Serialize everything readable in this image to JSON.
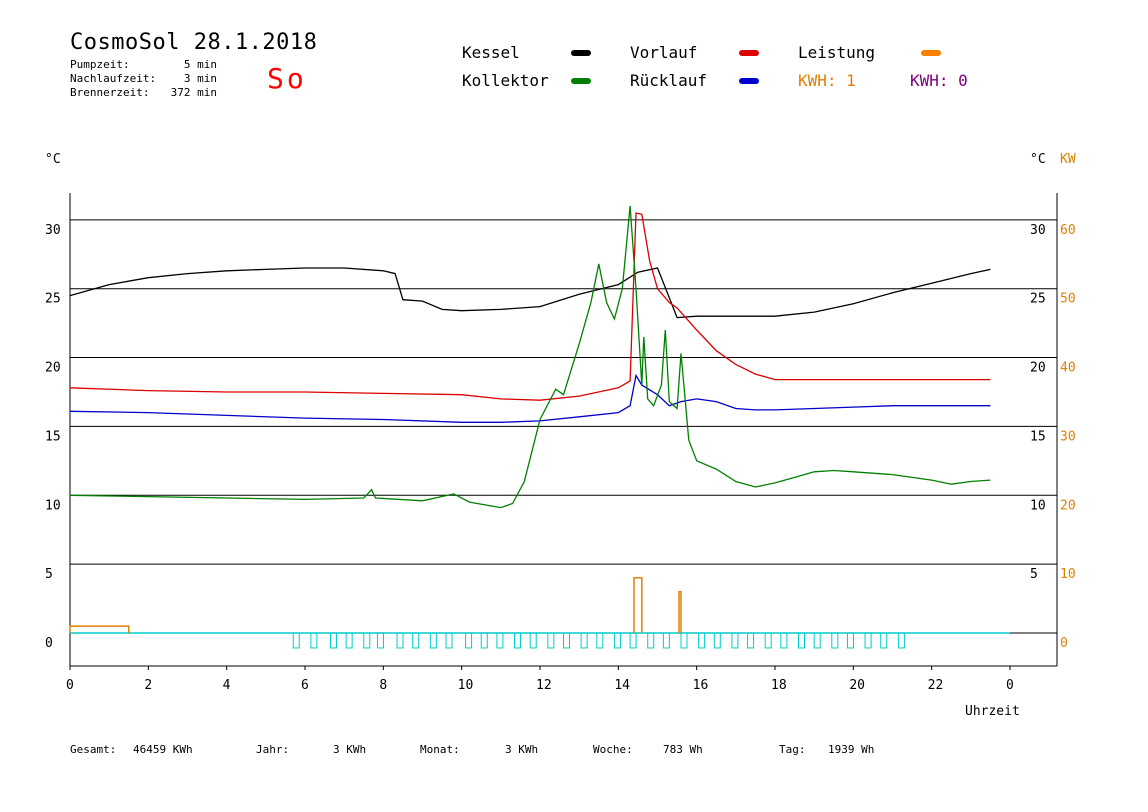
{
  "header": {
    "title": "CosmoSol 28.1.2018",
    "weekday": "So",
    "stats": [
      {
        "label": "Pumpzeit:",
        "value": "5 min"
      },
      {
        "label": "Nachlaufzeit:",
        "value": "3 min"
      },
      {
        "label": "Brennerzeit:",
        "value": "372 min"
      }
    ]
  },
  "legend": {
    "kessel": {
      "label": "Kessel",
      "color": "#000000"
    },
    "kollektor": {
      "label": "Kollektor",
      "color": "#008000"
    },
    "vorlauf": {
      "label": "Vorlauf",
      "color": "#dd0000"
    },
    "ruecklauf": {
      "label": "Rücklauf",
      "color": "#0000cc"
    },
    "leistung": {
      "label": "Leistung",
      "color": "#ff8000"
    },
    "kwh1": {
      "label": "KWH: 1",
      "color": "#ff8000"
    },
    "kwh2": {
      "label": "KWH: 0",
      "color": "#800080"
    }
  },
  "footer": {
    "gesamt_label": "Gesamt:",
    "gesamt_value": "46459 KWh",
    "jahr_label": "Jahr:",
    "jahr_value": "3 KWh",
    "monat_label": "Monat:",
    "monat_value": "3 KWh",
    "woche_label": "Woche:",
    "woche_value": "783 Wh",
    "tag_label": "Tag:",
    "tag_value": "1939 Wh"
  },
  "chart_data": {
    "type": "line",
    "ylabel_left": "°C",
    "ylabel_right": "°C",
    "ylabel_right2": "KW",
    "xlabel": "Uhrzeit",
    "x_ticks": [
      "0",
      "2",
      "4",
      "6",
      "8",
      "10",
      "12",
      "14",
      "16",
      "18",
      "20",
      "22",
      "0"
    ],
    "y_ticks_left": [
      "0",
      "5",
      "10",
      "15",
      "20",
      "25",
      "30"
    ],
    "y_ticks_right": [
      "5",
      "10",
      "15",
      "20",
      "25",
      "30"
    ],
    "y_ticks_kw": [
      "0",
      "10",
      "20",
      "30",
      "40",
      "50",
      "60"
    ],
    "xlim": [
      0,
      24
    ],
    "ylim": [
      -2.5,
      32
    ],
    "series": [
      {
        "name": "Kessel",
        "color": "#000000",
        "points": [
          [
            0,
            24.5
          ],
          [
            1,
            25.3
          ],
          [
            2,
            25.8
          ],
          [
            3,
            26.1
          ],
          [
            4,
            26.3
          ],
          [
            5,
            26.4
          ],
          [
            6,
            26.5
          ],
          [
            7,
            26.5
          ],
          [
            8,
            26.3
          ],
          [
            8.3,
            26.1
          ],
          [
            8.5,
            24.2
          ],
          [
            9,
            24.1
          ],
          [
            9.5,
            23.5
          ],
          [
            10,
            23.4
          ],
          [
            11,
            23.5
          ],
          [
            12,
            23.7
          ],
          [
            13,
            24.6
          ],
          [
            14,
            25.3
          ],
          [
            14.5,
            26.2
          ],
          [
            15,
            26.5
          ],
          [
            15.1,
            25.8
          ],
          [
            15.5,
            22.9
          ],
          [
            16,
            23
          ],
          [
            17,
            23
          ],
          [
            18,
            23
          ],
          [
            19,
            23.3
          ],
          [
            20,
            23.9
          ],
          [
            21,
            24.7
          ],
          [
            22,
            25.4
          ],
          [
            23,
            26.1
          ],
          [
            23.5,
            26.4
          ]
        ]
      },
      {
        "name": "Vorlauf",
        "color": "#dd0000",
        "points": [
          [
            0,
            17.8
          ],
          [
            2,
            17.6
          ],
          [
            4,
            17.5
          ],
          [
            6,
            17.5
          ],
          [
            8,
            17.4
          ],
          [
            10,
            17.3
          ],
          [
            11,
            17.0
          ],
          [
            12,
            16.9
          ],
          [
            13,
            17.2
          ],
          [
            14,
            17.8
          ],
          [
            14.3,
            18.3
          ],
          [
            14.45,
            30.5
          ],
          [
            14.6,
            30.4
          ],
          [
            14.8,
            27
          ],
          [
            15,
            25
          ],
          [
            15.3,
            24
          ],
          [
            15.5,
            23.6
          ],
          [
            16,
            22
          ],
          [
            16.5,
            20.5
          ],
          [
            17,
            19.5
          ],
          [
            17.5,
            18.8
          ],
          [
            18,
            18.4
          ],
          [
            19,
            18.4
          ],
          [
            20,
            18.4
          ],
          [
            22,
            18.4
          ],
          [
            23.5,
            18.4
          ]
        ]
      },
      {
        "name": "Rücklauf",
        "color": "#0000cc",
        "points": [
          [
            0,
            16.1
          ],
          [
            2,
            16.0
          ],
          [
            4,
            15.8
          ],
          [
            6,
            15.6
          ],
          [
            8,
            15.5
          ],
          [
            10,
            15.3
          ],
          [
            11,
            15.3
          ],
          [
            12,
            15.4
          ],
          [
            13,
            15.7
          ],
          [
            14,
            16.0
          ],
          [
            14.3,
            16.5
          ],
          [
            14.45,
            18.7
          ],
          [
            14.6,
            18
          ],
          [
            15,
            17.3
          ],
          [
            15.3,
            16.5
          ],
          [
            15.6,
            16.8
          ],
          [
            16,
            17.0
          ],
          [
            16.5,
            16.8
          ],
          [
            17,
            16.3
          ],
          [
            17.5,
            16.2
          ],
          [
            18,
            16.2
          ],
          [
            19,
            16.3
          ],
          [
            20,
            16.4
          ],
          [
            21,
            16.5
          ],
          [
            22,
            16.5
          ],
          [
            23.5,
            16.5
          ]
        ]
      },
      {
        "name": "Kollektor",
        "color": "#008000",
        "points": [
          [
            0,
            10.0
          ],
          [
            2,
            9.9
          ],
          [
            4,
            9.8
          ],
          [
            6,
            9.7
          ],
          [
            7.5,
            9.8
          ],
          [
            7.7,
            10.4
          ],
          [
            7.8,
            9.8
          ],
          [
            9,
            9.6
          ],
          [
            9.8,
            10.1
          ],
          [
            10.2,
            9.5
          ],
          [
            11,
            9.1
          ],
          [
            11.3,
            9.4
          ],
          [
            11.6,
            11
          ],
          [
            12,
            15.5
          ],
          [
            12.4,
            17.7
          ],
          [
            12.6,
            17.3
          ],
          [
            13,
            21
          ],
          [
            13.3,
            24
          ],
          [
            13.5,
            26.8
          ],
          [
            13.7,
            24
          ],
          [
            13.9,
            22.8
          ],
          [
            14.1,
            25
          ],
          [
            14.3,
            31
          ],
          [
            14.45,
            25
          ],
          [
            14.6,
            18
          ],
          [
            14.65,
            21.5
          ],
          [
            14.75,
            17
          ],
          [
            14.9,
            16.5
          ],
          [
            15.1,
            18
          ],
          [
            15.2,
            22
          ],
          [
            15.3,
            16.8
          ],
          [
            15.5,
            16.3
          ],
          [
            15.6,
            20.3
          ],
          [
            15.8,
            14
          ],
          [
            16,
            12.5
          ],
          [
            16.5,
            11.9
          ],
          [
            17,
            11.0
          ],
          [
            17.5,
            10.6
          ],
          [
            18,
            10.9
          ],
          [
            18.5,
            11.3
          ],
          [
            19,
            11.7
          ],
          [
            19.5,
            11.8
          ],
          [
            20,
            11.7
          ],
          [
            21,
            11.5
          ],
          [
            22,
            11.1
          ],
          [
            22.5,
            10.8
          ],
          [
            23,
            11.0
          ],
          [
            23.5,
            11.1
          ]
        ]
      }
    ],
    "pump_markers_hours": [
      5.7,
      6.15,
      6.65,
      7.05,
      7.5,
      7.85,
      8.35,
      8.75,
      9.2,
      9.6,
      10.1,
      10.5,
      10.9,
      11.35,
      11.75,
      12.2,
      12.6,
      13.05,
      13.45,
      13.9,
      14.3,
      14.75,
      15.15,
      15.6,
      16.05,
      16.45,
      16.9,
      17.3,
      17.75,
      18.15,
      18.6,
      19.0,
      19.45,
      19.85,
      20.3,
      20.7,
      21.15
    ],
    "leistung_spikes": [
      [
        0,
        1.5,
        0.5
      ],
      [
        14.4,
        14.6,
        4.0
      ],
      [
        15.55,
        15.6,
        3.0
      ]
    ]
  }
}
